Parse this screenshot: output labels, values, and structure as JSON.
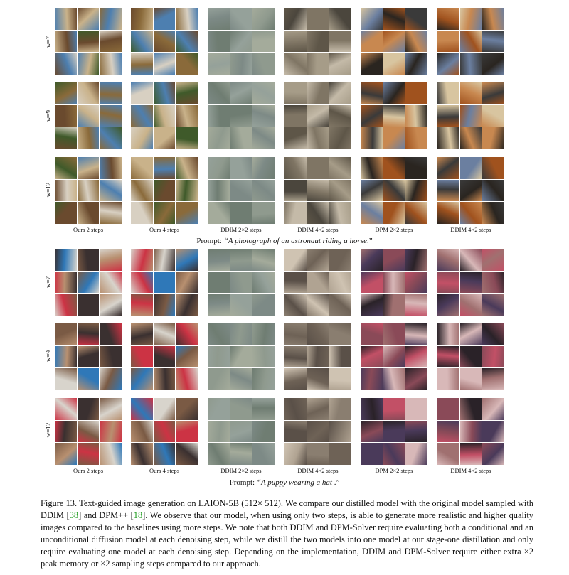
{
  "figure": {
    "block_a": {
      "rows": [
        "w=7",
        "w=9",
        "w=12"
      ],
      "columns": [
        "Ours 2 steps",
        "Ours 4 steps",
        "DDIM 2×2 steps",
        "DDIM 4×2 steps",
        "DPM 2×2 steps",
        "DDIM 4×2 steps"
      ],
      "prompt_prefix": "Prompt: ",
      "prompt_text": "‘‘A photograph of an astronaut riding a horse",
      "prompt_suffix": ".”"
    },
    "block_b": {
      "rows": [
        "w=7",
        "w=9",
        "w=12"
      ],
      "columns": [
        "Ours 2 steps",
        "Ours 4 steps",
        "DDIM 2×2 steps",
        "DDIM 4×2 steps",
        "DPM 2×2 steps",
        "DDIM 4×2 steps"
      ],
      "prompt_prefix": "Prompt: ",
      "prompt_text": "“A puppy wearing a hat",
      "prompt_suffix": " .”"
    },
    "palettes": {
      "ours_horse": [
        "#6a4a2e",
        "#8a6a3a",
        "#4d7fb0",
        "#c9b28a",
        "#3f5a2a",
        "#d8d0c2"
      ],
      "ddim2": [
        "#8f9a8e",
        "#6f7d72",
        "#a4ab9b",
        "#7d8a86",
        "#95a19a"
      ],
      "ddim4_horse": [
        "#7f7564",
        "#5e5648",
        "#a69c88",
        "#c4baa8",
        "#4b463d"
      ],
      "dpm_horse": [
        "#a0521e",
        "#3a3a3a",
        "#c88850",
        "#6b7fa0",
        "#d8c5a0",
        "#2a2520"
      ],
      "ours_dog": [
        "#7a5a44",
        "#cc3344",
        "#2f78b8",
        "#d8d4cc",
        "#3a3030",
        "#b89070"
      ],
      "ddim4_dog": [
        "#8a7e70",
        "#6e6256",
        "#b0a392",
        "#cfc3b2",
        "#5a5048"
      ],
      "dpm_dog": [
        "#8a4a58",
        "#c25066",
        "#4a3a5a",
        "#d8b8b8",
        "#2a2228",
        "#a07070"
      ]
    }
  },
  "caption": {
    "p1": "Figure 13. Text-guided image generation on LAION-5B (512× 512). We compare our distilled model with the original model sampled with DDIM [",
    "ref1": "38",
    "p2": "] and DPM++ [",
    "ref2": "18",
    "p3": "]. We observe that our model, when using only two steps, is able to generate more realistic and higher quality images compared to the baselines using more steps. We note that both DDIM and DPM-Solver require evaluating both a conditional and an unconditional diffusion model at each denoising step, while we distill the two models into one model at our stage-one distillation and only require evaluating one model at each denoising step. Depending on the implementation, DDIM and DPM-Solver require either extra ×2 peak memory or ×2 sampling steps compared to our approach."
  }
}
